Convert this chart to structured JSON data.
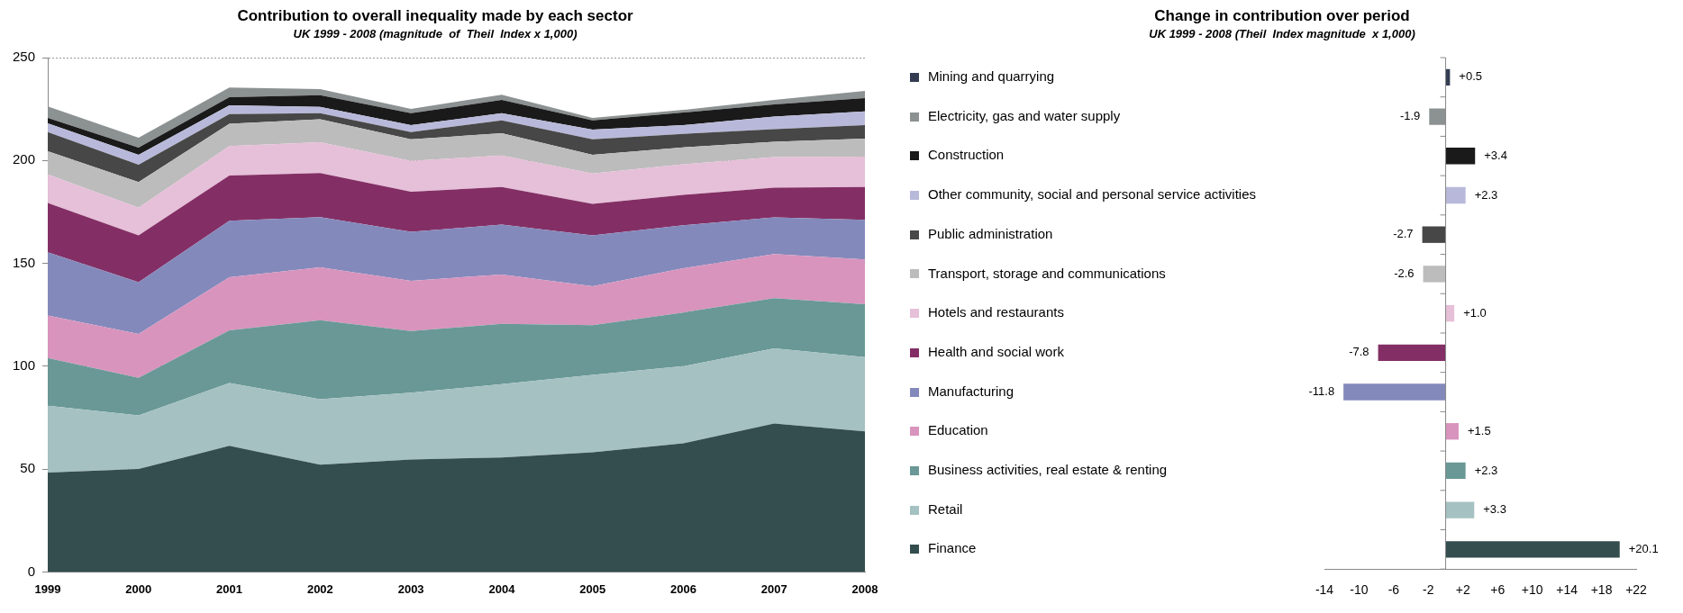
{
  "chart_data": [
    {
      "type": "area",
      "stacked": true,
      "title": "Contribution to overall inequality made by each sector",
      "subtitle": "UK 1999 - 2008 (magnitude  of  Theil  Index x 1,000)",
      "categories": [
        "1999",
        "2000",
        "2001",
        "2002",
        "2003",
        "2004",
        "2005",
        "2006",
        "2007",
        "2008"
      ],
      "series": [
        {
          "color": "#344d4e",
          "values": [
            48.3,
            50,
            61.3,
            52.1,
            54.7,
            55.6,
            58.2,
            62.5,
            72.1,
            68.3
          ]
        },
        {
          "color": "#a5c1c1",
          "values": [
            32.5,
            26.1,
            30.5,
            31.9,
            32.4,
            35.7,
            37.6,
            37.5,
            36.6,
            36.1
          ]
        },
        {
          "color": "#699896",
          "values": [
            23.2,
            18.3,
            25.6,
            38.3,
            30,
            29.3,
            24.2,
            26.1,
            24.4,
            25.7
          ]
        },
        {
          "color": "#d894bd",
          "values": [
            20.6,
            21.3,
            25.8,
            25.8,
            24.4,
            24,
            18.9,
            21.5,
            21.4,
            21.8
          ]
        },
        {
          "color": "#8489bb",
          "values": [
            30.8,
            25.1,
            27.5,
            24.4,
            23.8,
            24.2,
            24.7,
            20.9,
            17.8,
            19.2
          ]
        },
        {
          "color": "#832f65",
          "values": [
            23.9,
            22.8,
            22,
            21.4,
            19.5,
            18.3,
            15.3,
            14.8,
            14.5,
            16
          ]
        },
        {
          "color": "#e6bfd8",
          "values": [
            13.9,
            13.4,
            14.3,
            15,
            15,
            15.3,
            14.8,
            14.8,
            14.8,
            14.8
          ]
        },
        {
          "color": "#bcbcbc",
          "values": [
            11.3,
            12.5,
            10.8,
            11.1,
            10.5,
            10.8,
            9.1,
            8.3,
            7.5,
            8.7
          ]
        },
        {
          "color": "#474747",
          "values": [
            9.3,
            8.4,
            4.7,
            3,
            3.5,
            6.3,
            7.5,
            6.5,
            6.1,
            6.6
          ]
        },
        {
          "color": "#b8b9da",
          "values": [
            4.3,
            4.9,
            4.3,
            3,
            3.4,
            3.5,
            4.7,
            4.3,
            6.1,
            6.7
          ]
        },
        {
          "color": "#1a1a1a",
          "values": [
            2.6,
            3.5,
            4,
            5.7,
            5.8,
            6.4,
            4.5,
            6.1,
            5.9,
            6.4
          ]
        },
        {
          "color": "#8c9191",
          "values": [
            5.6,
            4.8,
            4.7,
            3,
            2.1,
            2.6,
            1.2,
            1.3,
            2.2,
            3.5
          ]
        }
      ],
      "ylim": [
        0,
        250
      ],
      "yticks": [
        0,
        50,
        100,
        150,
        200,
        250
      ],
      "grid": "y"
    },
    {
      "type": "bar",
      "orientation": "horizontal",
      "title": "Change in contribution over period",
      "subtitle": "UK 1999 - 2008 (Theil  Index magnitude  x 1,000)",
      "categories": [
        "Mining and quarrying",
        "Electricity, gas and water supply",
        "Construction",
        "Other community, social and personal service activities",
        "Public administration",
        "Transport, storage and communications",
        "Hotels and restaurants",
        "Health and social work",
        "Manufacturing",
        "Education",
        "Business activities, real estate & renting",
        "Retail",
        "Finance"
      ],
      "values": [
        0.5,
        -1.9,
        3.4,
        2.3,
        -2.7,
        -2.6,
        1.0,
        -7.8,
        -11.8,
        1.5,
        2.3,
        3.3,
        20.1
      ],
      "colors": [
        "#333c50",
        "#8c9191",
        "#1a1a1a",
        "#b8b9da",
        "#474747",
        "#bcbcbc",
        "#e6bfd8",
        "#832f65",
        "#8489bb",
        "#d894bd",
        "#699896",
        "#a5c1c1",
        "#344d4e"
      ],
      "value_labels": [
        "+0.5",
        "-1.9",
        "+3.4",
        "+2.3",
        "-2.7",
        "-2.6",
        "+1.0",
        "-7.8",
        "-11.8",
        "+1.5",
        "+2.3",
        "+3.3",
        "+20.1"
      ],
      "xlim": [
        -14,
        22
      ],
      "xticks": [
        {
          "value": -14,
          "label": "-14"
        },
        {
          "value": -10,
          "label": "-10"
        },
        {
          "value": -6,
          "label": "-6"
        },
        {
          "value": -2,
          "label": "-2"
        },
        {
          "value": 2,
          "label": "+2"
        },
        {
          "value": 6,
          "label": "+6"
        },
        {
          "value": 10,
          "label": "+10"
        },
        {
          "value": 14,
          "label": "+14"
        },
        {
          "value": 18,
          "label": "+18"
        },
        {
          "value": 22,
          "label": "+22"
        }
      ]
    }
  ]
}
